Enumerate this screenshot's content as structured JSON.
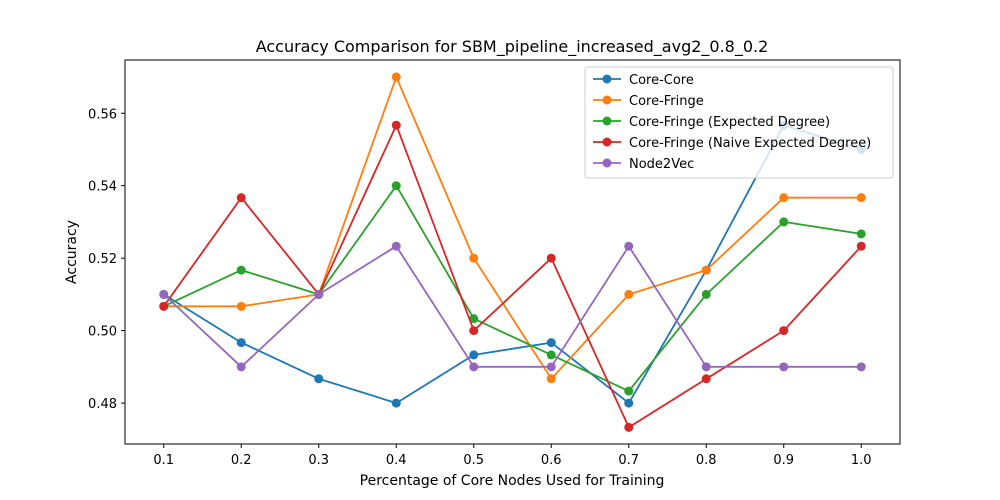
{
  "chart_data": {
    "type": "line",
    "title": "Accuracy Comparison for SBM_pipeline_increased_avg2_0.8_0.2",
    "xlabel": "Percentage of Core Nodes Used for Training",
    "ylabel": "Accuracy",
    "x": [
      0.1,
      0.2,
      0.3,
      0.4,
      0.5,
      0.6,
      0.7,
      0.8,
      0.9,
      1.0
    ],
    "x_tick_labels": [
      "0.1",
      "0.2",
      "0.3",
      "0.4",
      "0.5",
      "0.6",
      "0.7",
      "0.8",
      "0.9",
      "1.0"
    ],
    "y_ticks": [
      0.48,
      0.5,
      0.52,
      0.54,
      0.56
    ],
    "y_tick_labels": [
      "0.48",
      "0.50",
      "0.52",
      "0.54",
      "0.56"
    ],
    "xlim": [
      0.05,
      1.05
    ],
    "ylim": [
      0.4687,
      0.5747
    ],
    "grid": false,
    "legend_position": "top-right",
    "series": [
      {
        "name": "Core-Core",
        "color": "#1f77b4",
        "values": [
          0.51,
          0.4967,
          0.4867,
          0.48,
          0.4933,
          0.4967,
          0.48,
          0.5167,
          0.5567,
          0.55
        ]
      },
      {
        "name": "Core-Fringe",
        "color": "#ff7f0e",
        "values": [
          0.5067,
          0.5067,
          0.51,
          0.57,
          0.52,
          0.4867,
          0.51,
          0.5167,
          0.5367,
          0.5367
        ]
      },
      {
        "name": "Core-Fringe (Expected Degree)",
        "color": "#2ca02c",
        "values": [
          0.5067,
          0.5167,
          0.51,
          0.54,
          0.5033,
          0.4933,
          0.4833,
          0.51,
          0.53,
          0.5267
        ]
      },
      {
        "name": "Core-Fringe (Naive Expected Degree)",
        "color": "#d62728",
        "values": [
          0.5067,
          0.5367,
          0.51,
          0.5567,
          0.5,
          0.52,
          0.4733,
          0.4867,
          0.5,
          0.5233
        ]
      },
      {
        "name": "Node2Vec",
        "color": "#9467bd",
        "values": [
          0.51,
          0.49,
          0.51,
          0.5233,
          0.49,
          0.49,
          0.5233,
          0.49,
          0.49,
          0.49
        ]
      }
    ]
  }
}
